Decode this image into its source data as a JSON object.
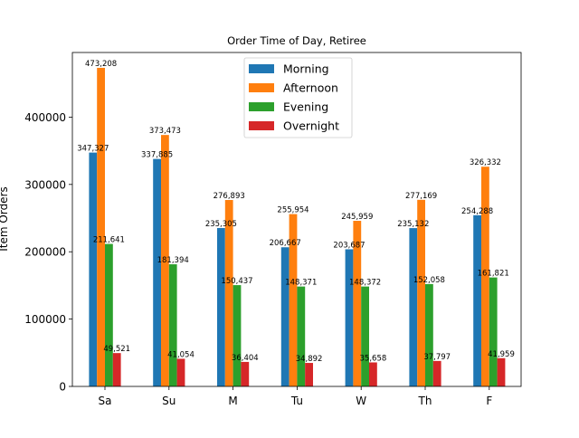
{
  "chart_data": {
    "type": "bar",
    "title": "Order Time of Day, Retiree",
    "xlabel": "",
    "ylabel": "Item Orders",
    "ylim": [
      0,
      496000
    ],
    "yticks": [
      0,
      100000,
      200000,
      300000,
      400000
    ],
    "ytick_labels": [
      "0",
      "100000",
      "200000",
      "300000",
      "400000"
    ],
    "categories": [
      "Sa",
      "Su",
      "M",
      "Tu",
      "W",
      "Th",
      "F"
    ],
    "legend_position": "top-center",
    "grid": false,
    "series": [
      {
        "name": "Morning",
        "color": "#1f77b4",
        "values": [
          347327,
          337885,
          235305,
          206667,
          203687,
          235132,
          254288
        ],
        "labels": [
          "347,327",
          "337,885",
          "235,305",
          "206,667",
          "203,687",
          "235,132",
          "254,288"
        ]
      },
      {
        "name": "Afternoon",
        "color": "#ff7f0e",
        "values": [
          473208,
          373473,
          276893,
          255954,
          245959,
          277169,
          326332
        ],
        "labels": [
          "473,208",
          "373,473",
          "276,893",
          "255,954",
          "245,959",
          "277,169",
          "326,332"
        ]
      },
      {
        "name": "Evening",
        "color": "#2ca02c",
        "values": [
          211641,
          181394,
          150437,
          148371,
          148372,
          152058,
          161821
        ],
        "labels": [
          "211,641",
          "181,394",
          "150,437",
          "148,371",
          "148,372",
          "152,058",
          "161,821"
        ]
      },
      {
        "name": "Overnight",
        "color": "#d62728",
        "values": [
          49521,
          41054,
          36404,
          34892,
          35658,
          37797,
          41959
        ],
        "labels": [
          "49,521",
          "41,054",
          "36,404",
          "34,892",
          "35,658",
          "37,797",
          "41,959"
        ]
      }
    ]
  }
}
